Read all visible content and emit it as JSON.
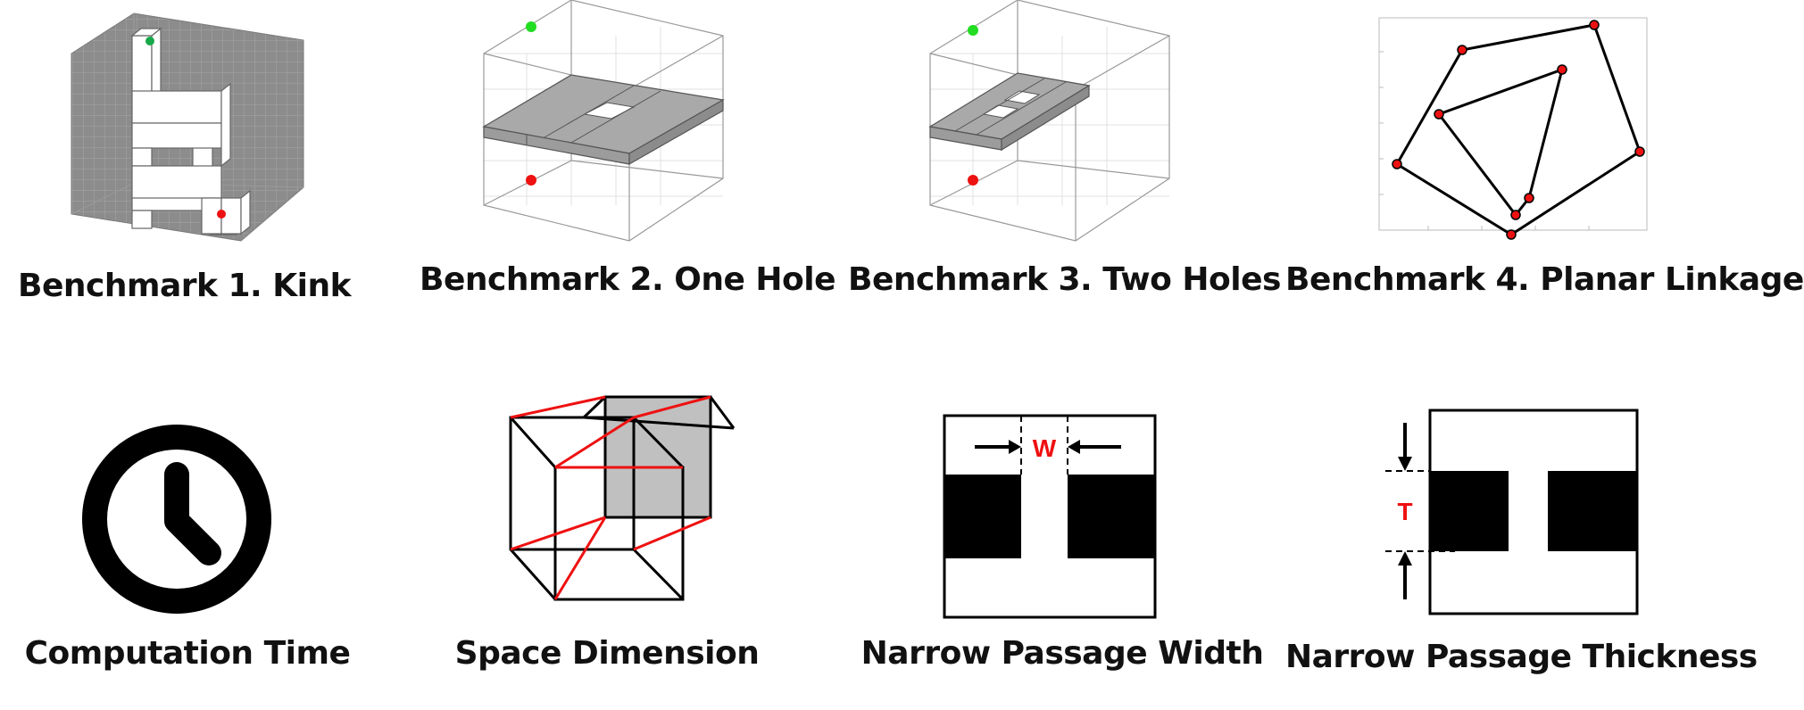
{
  "benchmarks": [
    {
      "caption": "Benchmark 1. Kink"
    },
    {
      "caption": "Benchmark 2. One Hole"
    },
    {
      "caption": "Benchmark 3. Two Holes"
    },
    {
      "caption": "Benchmark 4. Planar Linkage"
    }
  ],
  "criteria": [
    {
      "caption": "Computation Time",
      "icon": "clock-icon"
    },
    {
      "caption": "Space Dimension",
      "icon": "hypercube-icon"
    },
    {
      "caption": "Narrow Passage Width",
      "icon": "passage-width-icon",
      "label": "W"
    },
    {
      "caption": "Narrow Passage Thickness",
      "icon": "passage-thickness-icon",
      "label": "T"
    }
  ],
  "colors": {
    "start": "#22dd22",
    "goal": "#ee1111",
    "accent": "#ee1111",
    "obstacle": "#b0b0b0"
  }
}
